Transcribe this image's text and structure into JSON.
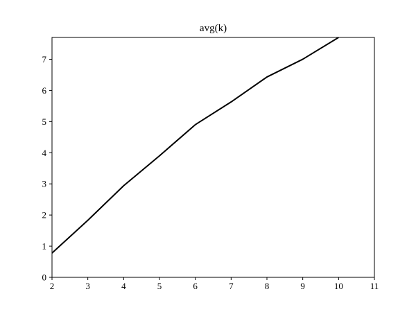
{
  "chart_data": {
    "type": "line",
    "title": "avg(k)",
    "xlabel": "",
    "ylabel": "",
    "xlim": [
      2,
      11
    ],
    "ylim": [
      0,
      7.7
    ],
    "x_ticks": [
      "2",
      "3",
      "4",
      "5",
      "6",
      "7",
      "8",
      "9",
      "10",
      "11"
    ],
    "y_ticks": [
      "0",
      "1",
      "2",
      "3",
      "4",
      "5",
      "6",
      "7"
    ],
    "grid": false,
    "series": [
      {
        "x": [
          2,
          3,
          4,
          5,
          6,
          7,
          8,
          9,
          10
        ],
        "y": [
          0.78,
          1.83,
          2.94,
          3.9,
          4.9,
          5.63,
          6.43,
          7.0,
          7.7
        ]
      }
    ],
    "colors": {
      "line": "#000000",
      "axes": "#000000",
      "background": "#ffffff"
    }
  }
}
